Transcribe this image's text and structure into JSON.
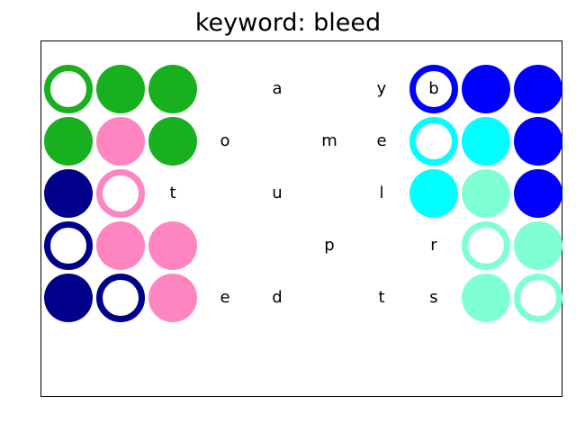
{
  "title": "keyword: bleed",
  "colors": {
    "green": "#18b01f",
    "pink": "#ff85c0",
    "navy": "#00008b",
    "blue": "#0000ff",
    "cyan": "#00ffff",
    "mint": "#7fffd4"
  },
  "rows": [
    [
      {
        "kind": "ring",
        "color": "green"
      },
      {
        "kind": "dot",
        "color": "green"
      },
      {
        "kind": "dot",
        "color": "green"
      },
      {
        "kind": "blank"
      },
      {
        "kind": "letter",
        "text": "a"
      },
      {
        "kind": "blank"
      },
      {
        "kind": "letter",
        "text": "y"
      },
      {
        "kind": "ring",
        "color": "blue",
        "text": "b"
      },
      {
        "kind": "dot",
        "color": "blue"
      },
      {
        "kind": "dot",
        "color": "blue"
      }
    ],
    [
      {
        "kind": "dot",
        "color": "green"
      },
      {
        "kind": "dot",
        "color": "pink"
      },
      {
        "kind": "dot",
        "color": "green"
      },
      {
        "kind": "letter",
        "text": "o"
      },
      {
        "kind": "blank"
      },
      {
        "kind": "letter",
        "text": "m"
      },
      {
        "kind": "letter",
        "text": "e"
      },
      {
        "kind": "ring",
        "color": "cyan"
      },
      {
        "kind": "dot",
        "color": "cyan"
      },
      {
        "kind": "dot",
        "color": "blue"
      }
    ],
    [
      {
        "kind": "dot",
        "color": "navy"
      },
      {
        "kind": "ring",
        "color": "pink"
      },
      {
        "kind": "letter",
        "text": "t"
      },
      {
        "kind": "blank"
      },
      {
        "kind": "letter",
        "text": "u"
      },
      {
        "kind": "blank"
      },
      {
        "kind": "letter",
        "text": "l"
      },
      {
        "kind": "dot",
        "color": "cyan"
      },
      {
        "kind": "dot",
        "color": "mint"
      },
      {
        "kind": "dot",
        "color": "blue"
      }
    ],
    [
      {
        "kind": "ring",
        "color": "navy"
      },
      {
        "kind": "dot",
        "color": "pink"
      },
      {
        "kind": "dot",
        "color": "pink"
      },
      {
        "kind": "blank"
      },
      {
        "kind": "blank"
      },
      {
        "kind": "letter",
        "text": "p"
      },
      {
        "kind": "blank"
      },
      {
        "kind": "letter",
        "text": "r"
      },
      {
        "kind": "ring",
        "color": "mint"
      },
      {
        "kind": "dot",
        "color": "mint"
      }
    ],
    [
      {
        "kind": "dot",
        "color": "navy"
      },
      {
        "kind": "ring",
        "color": "navy"
      },
      {
        "kind": "dot",
        "color": "pink"
      },
      {
        "kind": "letter",
        "text": "e"
      },
      {
        "kind": "letter",
        "text": "d"
      },
      {
        "kind": "blank"
      },
      {
        "kind": "letter",
        "text": "t"
      },
      {
        "kind": "letter",
        "text": "s"
      },
      {
        "kind": "dot",
        "color": "mint"
      },
      {
        "kind": "ring",
        "color": "mint"
      }
    ]
  ]
}
